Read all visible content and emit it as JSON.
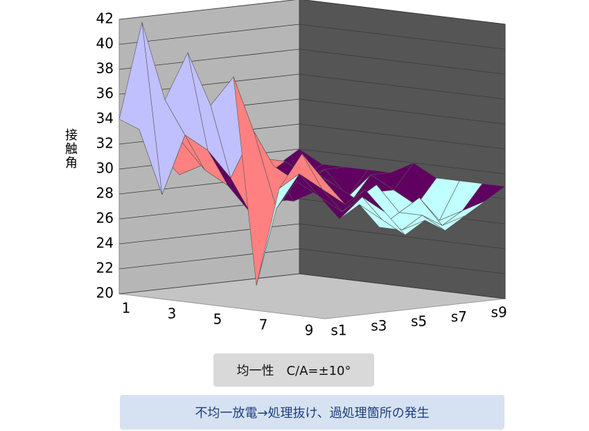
{
  "chart_data": {
    "type": "surface",
    "zlabel": "接触角",
    "x_categories": [
      "1",
      null,
      "3",
      null,
      "5",
      null,
      "7",
      null,
      "9",
      null
    ],
    "y_categories": [
      "s1",
      null,
      "s3",
      null,
      "s5",
      null,
      "s7",
      null,
      "s9",
      null
    ],
    "values": [
      [
        34,
        33,
        31,
        29,
        30,
        31,
        29,
        28,
        29,
        30
      ],
      [
        42,
        28,
        32,
        30,
        29,
        31,
        30,
        29,
        28,
        29
      ],
      [
        36,
        33,
        30,
        31,
        28,
        29,
        30,
        28,
        29,
        29
      ],
      [
        40,
        32,
        29,
        30,
        29,
        28,
        29,
        28,
        27,
        29
      ],
      [
        36,
        30,
        27,
        28,
        29,
        30,
        28,
        27,
        29,
        29
      ],
      [
        38.5,
        34,
        31,
        28,
        30,
        29,
        27,
        28,
        28,
        30
      ],
      [
        22,
        28,
        30,
        29,
        27,
        28,
        29,
        26,
        27,
        29
      ],
      [
        30,
        31,
        29,
        27,
        28,
        26,
        27,
        28,
        26,
        29
      ],
      [
        33,
        30,
        28,
        29,
        27,
        26,
        27,
        26,
        27,
        29
      ],
      [
        31,
        29,
        30,
        28,
        26,
        27,
        26,
        27,
        28,
        29
      ]
    ],
    "zlim": [
      20,
      42
    ],
    "zticks": [
      20,
      22,
      24,
      26,
      28,
      30,
      32,
      34,
      36,
      38,
      40,
      42
    ],
    "band_colors": [
      "#800040",
      "#800040",
      "#ffffc0",
      "#c0ffff",
      "#600060",
      "#ff8080",
      "#0066cc",
      "#c0c0ff",
      "#000080",
      "#ff00ff",
      "#ffff00"
    ],
    "annotations": [
      "均一性　C/A=±10°",
      "不均一放電→処理抜け、過処理箇所の発生"
    ]
  }
}
